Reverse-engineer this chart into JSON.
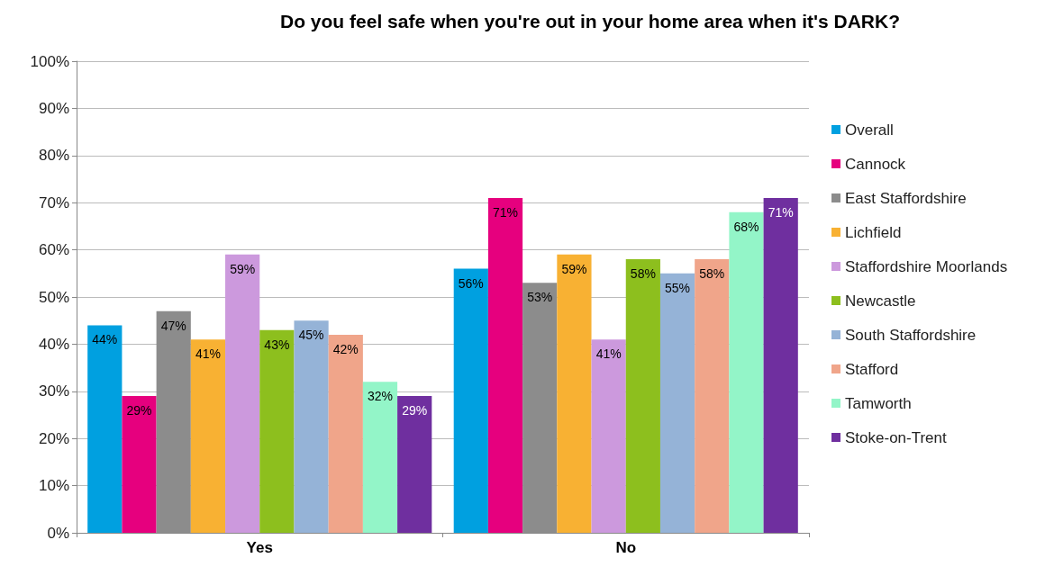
{
  "chart_data": {
    "type": "bar",
    "title": "Do you feel safe when you're out in your home area when it's DARK?",
    "categories": [
      "Yes",
      "No"
    ],
    "series": [
      {
        "name": "Overall",
        "color": "#00a0e0",
        "values": [
          44,
          56
        ],
        "value_labels": [
          "44%",
          "56%"
        ]
      },
      {
        "name": "Cannock",
        "color": "#e6007e",
        "values": [
          29,
          71
        ],
        "value_labels": [
          "29%",
          "71%"
        ]
      },
      {
        "name": "East Staffordshire",
        "color": "#8c8c8c",
        "values": [
          47,
          53
        ],
        "value_labels": [
          "47%",
          "53%"
        ]
      },
      {
        "name": "Lichfield",
        "color": "#f8b133",
        "values": [
          41,
          59
        ],
        "value_labels": [
          "41%",
          "59%"
        ]
      },
      {
        "name": "Staffordshire Moorlands",
        "color": "#cc99dd",
        "values": [
          59,
          41
        ],
        "value_labels": [
          "59%",
          "41%"
        ]
      },
      {
        "name": "Newcastle",
        "color": "#8dbf1e",
        "values": [
          43,
          58
        ],
        "value_labels": [
          "43%",
          "58%"
        ]
      },
      {
        "name": "South Staffordshire",
        "color": "#95b3d7",
        "values": [
          45,
          55
        ],
        "value_labels": [
          "45%",
          "55%"
        ]
      },
      {
        "name": "Stafford",
        "color": "#f0a58a",
        "values": [
          42,
          58
        ],
        "value_labels": [
          "42%",
          "58%"
        ]
      },
      {
        "name": "Tamworth",
        "color": "#93f5c8",
        "values": [
          32,
          68
        ],
        "value_labels": [
          "32%",
          "68%"
        ]
      },
      {
        "name": "Stoke-on-Trent",
        "color": "#6f2f9f",
        "values": [
          29,
          71
        ],
        "value_labels": [
          "29%",
          "71%"
        ]
      }
    ],
    "ylim": [
      0,
      100
    ],
    "yticks": [
      {
        "value": 0,
        "label": "0%"
      },
      {
        "value": 10,
        "label": "10%"
      },
      {
        "value": 20,
        "label": "20%"
      },
      {
        "value": 30,
        "label": "30%"
      },
      {
        "value": 40,
        "label": "40%"
      },
      {
        "value": 50,
        "label": "50%"
      },
      {
        "value": 60,
        "label": "60%"
      },
      {
        "value": 70,
        "label": "70%"
      },
      {
        "value": 80,
        "label": "80%"
      },
      {
        "value": 90,
        "label": "90%"
      },
      {
        "value": 100,
        "label": "100%"
      }
    ],
    "grid": "y",
    "legend": "right"
  }
}
